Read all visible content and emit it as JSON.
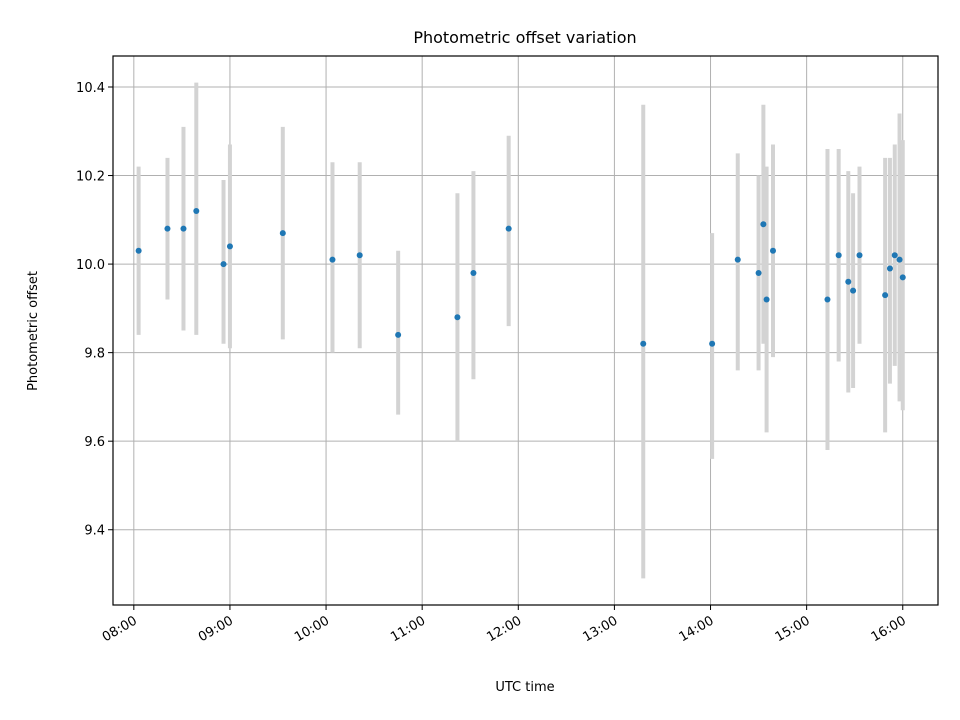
{
  "chart_data": {
    "type": "scatter",
    "title": "Photometric offset variation",
    "xlabel": "UTC time",
    "ylabel": "Photometric offset",
    "xlim": [
      "07:47",
      "16:22"
    ],
    "ylim": [
      9.23,
      10.47
    ],
    "grid": true,
    "x_ticks": [
      "08:00",
      "09:00",
      "10:00",
      "11:00",
      "12:00",
      "13:00",
      "14:00",
      "15:00",
      "16:00"
    ],
    "y_ticks": [
      9.4,
      9.6,
      9.8,
      10.0,
      10.2,
      10.4
    ],
    "colors": {
      "point": "#1f77b4",
      "errorbar": "#d3d3d3",
      "grid": "#b0b0b0"
    },
    "points": [
      {
        "t": "08:03",
        "y": 10.03,
        "lo": 9.84,
        "hi": 10.22
      },
      {
        "t": "08:21",
        "y": 10.08,
        "lo": 9.92,
        "hi": 10.24
      },
      {
        "t": "08:31",
        "y": 10.08,
        "lo": 9.85,
        "hi": 10.31
      },
      {
        "t": "08:39",
        "y": 10.12,
        "lo": 9.84,
        "hi": 10.41
      },
      {
        "t": "08:56",
        "y": 10.0,
        "lo": 9.82,
        "hi": 10.19
      },
      {
        "t": "09:00",
        "y": 10.04,
        "lo": 9.81,
        "hi": 10.27
      },
      {
        "t": "09:33",
        "y": 10.07,
        "lo": 9.83,
        "hi": 10.31
      },
      {
        "t": "10:04",
        "y": 10.01,
        "lo": 9.8,
        "hi": 10.23
      },
      {
        "t": "10:21",
        "y": 10.02,
        "lo": 9.81,
        "hi": 10.23
      },
      {
        "t": "10:45",
        "y": 9.84,
        "lo": 9.66,
        "hi": 10.03
      },
      {
        "t": "11:22",
        "y": 9.88,
        "lo": 9.6,
        "hi": 10.16
      },
      {
        "t": "11:32",
        "y": 9.98,
        "lo": 9.74,
        "hi": 10.21
      },
      {
        "t": "11:54",
        "y": 10.08,
        "lo": 9.86,
        "hi": 10.29
      },
      {
        "t": "13:18",
        "y": 9.82,
        "lo": 9.29,
        "hi": 10.36
      },
      {
        "t": "14:01",
        "y": 9.82,
        "lo": 9.56,
        "hi": 10.07
      },
      {
        "t": "14:17",
        "y": 10.01,
        "lo": 9.76,
        "hi": 10.25
      },
      {
        "t": "14:30",
        "y": 9.98,
        "lo": 9.76,
        "hi": 10.2
      },
      {
        "t": "14:33",
        "y": 10.09,
        "lo": 9.82,
        "hi": 10.36
      },
      {
        "t": "14:35",
        "y": 9.92,
        "lo": 9.62,
        "hi": 10.22
      },
      {
        "t": "14:39",
        "y": 10.03,
        "lo": 9.79,
        "hi": 10.27
      },
      {
        "t": "15:13",
        "y": 9.92,
        "lo": 9.58,
        "hi": 10.26
      },
      {
        "t": "15:20",
        "y": 10.02,
        "lo": 9.78,
        "hi": 10.26
      },
      {
        "t": "15:26",
        "y": 9.96,
        "lo": 9.71,
        "hi": 10.21
      },
      {
        "t": "15:29",
        "y": 9.94,
        "lo": 9.72,
        "hi": 10.16
      },
      {
        "t": "15:33",
        "y": 10.02,
        "lo": 9.82,
        "hi": 10.22
      },
      {
        "t": "15:49",
        "y": 9.93,
        "lo": 9.62,
        "hi": 10.24
      },
      {
        "t": "15:52",
        "y": 9.99,
        "lo": 9.73,
        "hi": 10.24
      },
      {
        "t": "15:55",
        "y": 10.02,
        "lo": 9.77,
        "hi": 10.27
      },
      {
        "t": "15:58",
        "y": 10.01,
        "lo": 9.69,
        "hi": 10.34
      },
      {
        "t": "16:00",
        "y": 9.97,
        "lo": 9.67,
        "hi": 10.28
      }
    ]
  }
}
